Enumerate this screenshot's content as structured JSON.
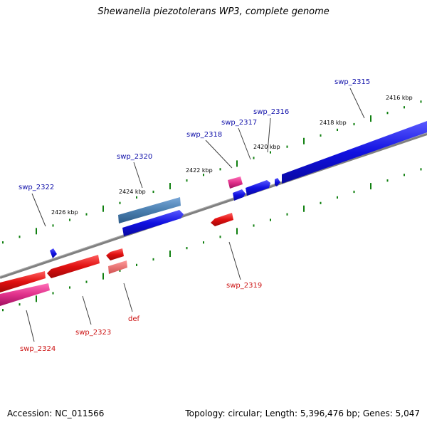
{
  "title": "Shewanella piezotolerans WP3, complete genome",
  "footer": {
    "accession": "Accession: NC_011566",
    "topology": "Topology: circular; Length: 5,396,476 bp; Genes: 5,047"
  },
  "colors": {
    "forward_gene": "#1010e0",
    "reverse_gene": "#e01010",
    "rna_gene": "#e0308a",
    "other_gene": "#4a7fb0",
    "backbone": "#808080",
    "ticks": "#108010",
    "forward_label": "#1111aa",
    "reverse_label": "#cc1111"
  },
  "kbp_labels": [
    "2416 kbp",
    "2418 kbp",
    "2420 kbp",
    "2422 kbp",
    "2424 kbp",
    "2426 kbp"
  ],
  "genes": {
    "swp_2315": "swp_2315",
    "swp_2316": "swp_2316",
    "swp_2317": "swp_2317",
    "swp_2318": "swp_2318",
    "swp_2320": "swp_2320",
    "swp_2322": "swp_2322",
    "swp_2319": "swp_2319",
    "def": "def",
    "swp_2323": "swp_2323",
    "swp_2324": "swp_2324"
  }
}
